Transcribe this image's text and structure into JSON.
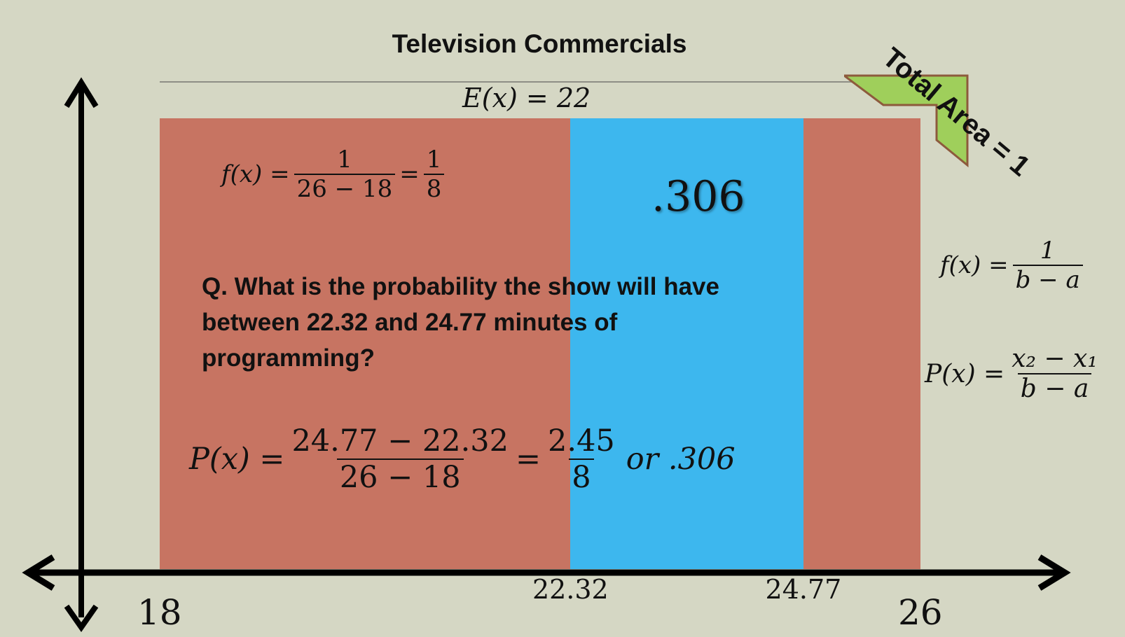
{
  "title": "Television Commercials",
  "expected_value": "E(x) = 22",
  "pdf_formula": {
    "lhs": "f(x) =",
    "num": "1",
    "den": "26 − 18",
    "eq": "=",
    "num2": "1",
    "den2": "8"
  },
  "answer_highlight": ".306",
  "question": "Q. What is the probability the show will have between 22.32 and 24.77 minutes of programming?",
  "prob_formula": {
    "lhs": "P(x) =",
    "num": "24.77 − 22.32",
    "den": "26 − 18",
    "eq": "=",
    "num2": "2.45",
    "den2": "8",
    "tail": "or .306"
  },
  "side_pdf": {
    "lhs": "f(x) =",
    "num": "1",
    "den": "b − a"
  },
  "side_prob": {
    "lhs": "P(x) =",
    "num": "x₂ − x₁",
    "den": "b − a"
  },
  "total_area": "Total Area = 1",
  "axis": {
    "min_label": "18",
    "max_label": "26",
    "low_label": "22.32",
    "high_label": "24.77",
    "min": 18,
    "max": 26,
    "low": 22.32,
    "high": 24.77
  },
  "colors": {
    "background": "#d5d7c4",
    "outer_region": "#c77462",
    "shaded_region": "#3db7ee",
    "corner": "#9fcf5b"
  }
}
